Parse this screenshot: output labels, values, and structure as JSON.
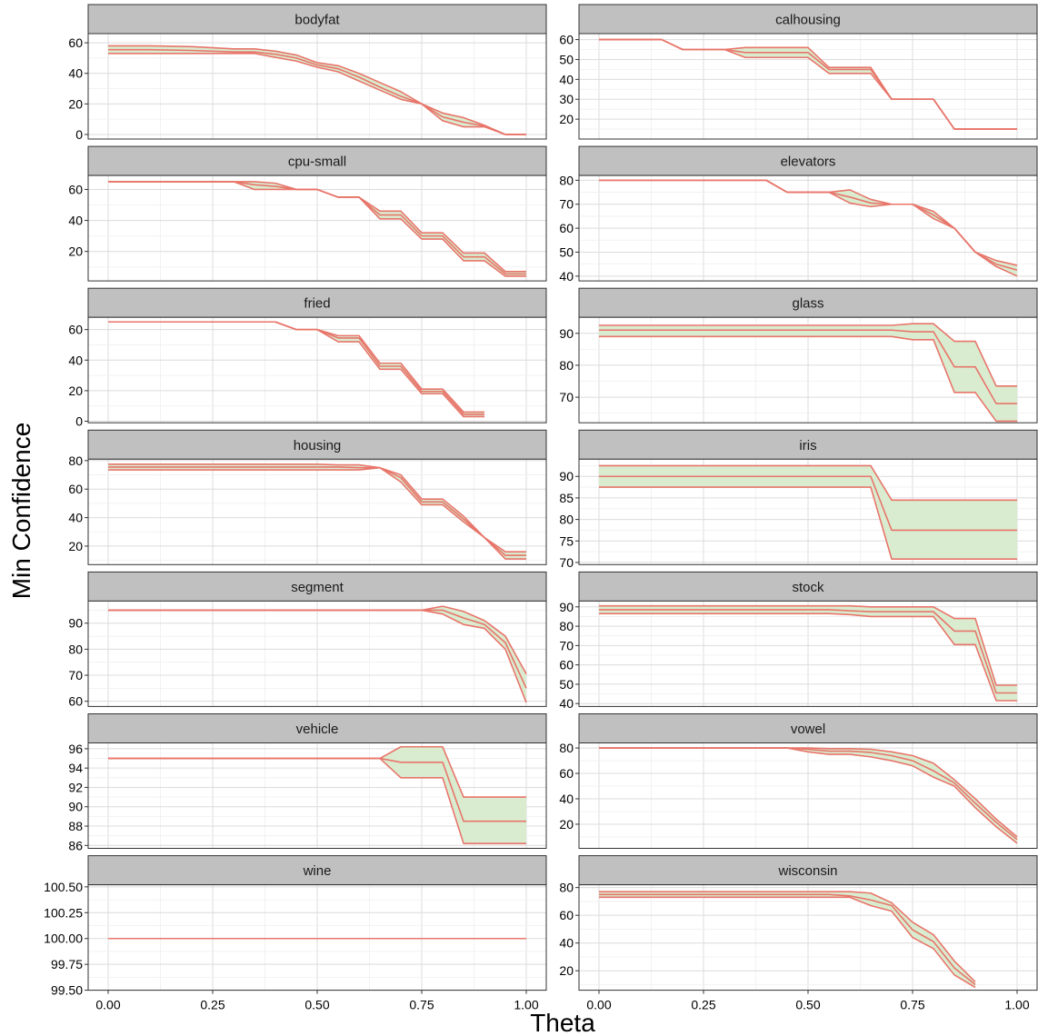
{
  "figure": {
    "xlabel": "Theta",
    "ylabel": "Min Confidence",
    "x_ticks": [
      "0.00",
      "0.25",
      "0.50",
      "0.75",
      "1.00"
    ]
  },
  "colors": {
    "line": "#e8756a",
    "band_fill": "#d9ecd0",
    "panel_border": "#333333",
    "strip_fill": "#c0c0c0",
    "grid_major": "#dcdcdc",
    "grid_minor": "#efefef"
  },
  "chart_data": [
    {
      "type": "line",
      "title": "bodyfat",
      "ylim": [
        -3,
        66
      ],
      "yticks": [
        0,
        20,
        40,
        60
      ],
      "x": [
        0,
        0.1,
        0.2,
        0.3,
        0.35,
        0.4,
        0.45,
        0.5,
        0.55,
        0.6,
        0.65,
        0.7,
        0.75,
        0.8,
        0.85,
        0.9,
        0.95,
        1.0
      ],
      "upper": [
        58,
        58,
        57.5,
        56,
        56,
        54.5,
        52,
        47,
        45,
        40,
        34,
        28,
        20,
        14,
        11,
        6,
        0,
        0
      ],
      "mid": [
        55.5,
        55.5,
        55,
        54,
        54,
        52.5,
        50,
        45.5,
        43,
        37.5,
        31,
        25,
        20,
        11.5,
        8,
        5.5,
        0,
        0
      ],
      "lower": [
        53,
        53,
        53,
        53,
        53,
        50.5,
        48,
        44,
        41,
        35,
        29,
        23,
        20,
        9,
        5,
        5,
        0,
        0
      ]
    },
    {
      "type": "line",
      "title": "calhousing",
      "ylim": [
        10,
        63
      ],
      "yticks": [
        20,
        30,
        40,
        50,
        60
      ],
      "x": [
        0,
        0.15,
        0.2,
        0.3,
        0.35,
        0.5,
        0.55,
        0.65,
        0.7,
        0.8,
        0.85,
        1.0
      ],
      "upper": [
        60,
        60,
        55,
        55,
        56,
        56,
        46,
        46,
        30,
        30,
        15,
        15
      ],
      "mid": [
        60,
        60,
        55,
        55,
        53.5,
        53.5,
        45,
        45,
        30,
        30,
        15,
        15
      ],
      "lower": [
        60,
        60,
        55,
        55,
        51,
        51,
        43,
        43,
        30,
        30,
        15,
        15
      ]
    },
    {
      "type": "line",
      "title": "cpu-small",
      "ylim": [
        1,
        69
      ],
      "yticks": [
        20,
        40,
        60
      ],
      "x": [
        0,
        0.3,
        0.35,
        0.4,
        0.45,
        0.5,
        0.55,
        0.6,
        0.65,
        0.7,
        0.75,
        0.8,
        0.85,
        0.9,
        0.95,
        1.0
      ],
      "upper": [
        65,
        65,
        65,
        64,
        60,
        60,
        55,
        55,
        46,
        46,
        32,
        32,
        19,
        19,
        7,
        7
      ],
      "mid": [
        65,
        65,
        63,
        62,
        60,
        60,
        55,
        55,
        43.5,
        43.5,
        30,
        30,
        16.5,
        16.5,
        5.5,
        5.5
      ],
      "lower": [
        65,
        65,
        60,
        60,
        60,
        60,
        55,
        55,
        41,
        41,
        28,
        28,
        14,
        14,
        4,
        4
      ]
    },
    {
      "type": "line",
      "title": "elevators",
      "ylim": [
        38,
        82
      ],
      "yticks": [
        40,
        50,
        60,
        70,
        80
      ],
      "x": [
        0,
        0.4,
        0.45,
        0.5,
        0.55,
        0.6,
        0.65,
        0.7,
        0.75,
        0.8,
        0.85,
        0.9,
        0.95,
        1.0
      ],
      "upper": [
        80,
        80,
        75,
        75,
        75,
        76,
        72,
        70,
        70,
        67,
        60,
        50,
        46.5,
        44.5
      ],
      "mid": [
        80,
        80,
        75,
        75,
        75,
        73,
        70.5,
        70,
        70,
        65.5,
        60,
        50,
        45,
        42.5
      ],
      "lower": [
        80,
        80,
        75,
        75,
        75,
        70.5,
        69,
        70,
        70,
        64,
        60,
        50,
        44,
        40
      ]
    },
    {
      "type": "line",
      "title": "fried",
      "ylim": [
        -1,
        68
      ],
      "yticks": [
        0,
        20,
        40,
        60
      ],
      "x": [
        0,
        0.4,
        0.45,
        0.5,
        0.55,
        0.6,
        0.65,
        0.7,
        0.75,
        0.8,
        0.85,
        0.9
      ],
      "upper": [
        65,
        65,
        60,
        60,
        56,
        56,
        38,
        38,
        21,
        21,
        6,
        6
      ],
      "mid": [
        65,
        65,
        60,
        60,
        54.5,
        54.5,
        36,
        36,
        19.5,
        19.5,
        4.5,
        4.5
      ],
      "lower": [
        65,
        65,
        60,
        60,
        52,
        52,
        34,
        34,
        18,
        18,
        3,
        3
      ]
    },
    {
      "type": "line",
      "title": "glass",
      "ylim": [
        62,
        95
      ],
      "yticks": [
        70,
        80,
        90
      ],
      "x": [
        0,
        0.65,
        0.7,
        0.75,
        0.8,
        0.85,
        0.9,
        0.95,
        1.0
      ],
      "upper": [
        92.5,
        92.5,
        92.5,
        93,
        93,
        87.5,
        87.5,
        73.5,
        73.5
      ],
      "mid": [
        91,
        91,
        91,
        90.5,
        90.5,
        79.5,
        79.5,
        68,
        68
      ],
      "lower": [
        89,
        89,
        89,
        88,
        88,
        71.5,
        71.5,
        62.5,
        62.5
      ]
    },
    {
      "type": "line",
      "title": "housing",
      "ylim": [
        7,
        81
      ],
      "yticks": [
        20,
        40,
        60,
        80
      ],
      "x": [
        0,
        0.5,
        0.55,
        0.6,
        0.65,
        0.7,
        0.75,
        0.8,
        0.85,
        0.9,
        0.95,
        1.0
      ],
      "upper": [
        77.5,
        77.5,
        77,
        77,
        75,
        70,
        53,
        53,
        41,
        26,
        16,
        16
      ],
      "mid": [
        75.5,
        75.5,
        75.5,
        75,
        75,
        68,
        51,
        51,
        39,
        26,
        13.5,
        13.5
      ],
      "lower": [
        73.5,
        73.5,
        73.5,
        73.5,
        75,
        65,
        49,
        49,
        37,
        26,
        11,
        11
      ]
    },
    {
      "type": "line",
      "title": "iris",
      "ylim": [
        69.5,
        94
      ],
      "yticks": [
        70,
        75,
        80,
        85,
        90
      ],
      "x": [
        0,
        0.65,
        0.7,
        1.0
      ],
      "upper": [
        92.5,
        92.5,
        84.5,
        84.5
      ],
      "mid": [
        90,
        90,
        77.5,
        77.5
      ],
      "lower": [
        87.5,
        87.5,
        70.8,
        70.8
      ]
    },
    {
      "type": "line",
      "title": "segment",
      "ylim": [
        58,
        98.5
      ],
      "yticks": [
        60,
        70,
        80,
        90
      ],
      "x": [
        0,
        0.75,
        0.8,
        0.85,
        0.9,
        0.95,
        1.0
      ],
      "upper": [
        95,
        95,
        96.5,
        94.5,
        91,
        85,
        70.5
      ],
      "mid": [
        95,
        95,
        95,
        92,
        89.5,
        82.5,
        65
      ],
      "lower": [
        95,
        95,
        93.5,
        89.5,
        88,
        80,
        59.5
      ]
    },
    {
      "type": "line",
      "title": "stock",
      "ylim": [
        38.5,
        93
      ],
      "yticks": [
        40,
        50,
        60,
        70,
        80,
        90
      ],
      "x": [
        0,
        0.55,
        0.6,
        0.65,
        0.7,
        0.75,
        0.8,
        0.85,
        0.9,
        0.95,
        1.0
      ],
      "upper": [
        90.5,
        90.5,
        90.5,
        90,
        90,
        90,
        90,
        84,
        84,
        49.5,
        49.5
      ],
      "mid": [
        88.5,
        88.5,
        88,
        87.5,
        87.5,
        87.5,
        87.5,
        77.5,
        77.5,
        45.5,
        45.5
      ],
      "lower": [
        86.5,
        86.5,
        86,
        85,
        85,
        85,
        85,
        70.5,
        70.5,
        41.5,
        41.5
      ]
    },
    {
      "type": "line",
      "title": "vehicle",
      "ylim": [
        85.7,
        96.6
      ],
      "yticks": [
        86,
        88,
        90,
        92,
        94,
        96
      ],
      "x": [
        0,
        0.65,
        0.7,
        0.8,
        0.85,
        1.0
      ],
      "upper": [
        95,
        95,
        96.2,
        96.2,
        91,
        91
      ],
      "mid": [
        95,
        95,
        94.6,
        94.6,
        88.5,
        88.5
      ],
      "lower": [
        95,
        95,
        93,
        93,
        86.2,
        86.2
      ]
    },
    {
      "type": "line",
      "title": "vowel",
      "ylim": [
        1,
        84
      ],
      "yticks": [
        20,
        40,
        60,
        80
      ],
      "x": [
        0,
        0.45,
        0.5,
        0.55,
        0.6,
        0.65,
        0.7,
        0.75,
        0.8,
        0.85,
        0.9,
        0.95,
        1.0
      ],
      "upper": [
        80,
        80,
        80,
        79.5,
        79.5,
        79,
        77,
        74,
        68,
        55,
        40,
        24,
        10
      ],
      "mid": [
        80,
        80,
        79,
        77.5,
        77.5,
        76.5,
        74,
        70,
        62,
        52.5,
        36.5,
        21.5,
        8
      ],
      "lower": [
        80,
        80,
        77,
        75,
        75,
        73,
        70,
        66,
        57,
        50,
        33,
        18,
        5
      ]
    },
    {
      "type": "line",
      "title": "wine",
      "ylim": [
        99.5,
        100.52
      ],
      "yticks": [
        99.5,
        99.75,
        100.0,
        100.25,
        100.5
      ],
      "ytick_labels": [
        "99.50",
        "99.75",
        "100.00",
        "100.25",
        "100.50"
      ],
      "x": [
        0,
        1.0
      ],
      "upper": [
        100,
        100
      ],
      "mid": [
        100,
        100
      ],
      "lower": [
        100,
        100
      ]
    },
    {
      "type": "line",
      "title": "wisconsin",
      "ylim": [
        6,
        82
      ],
      "yticks": [
        20,
        40,
        60,
        80
      ],
      "x": [
        0,
        0.55,
        0.6,
        0.65,
        0.7,
        0.75,
        0.8,
        0.85,
        0.9
      ],
      "upper": [
        77,
        77,
        77,
        76,
        69,
        55,
        46,
        27,
        12
      ],
      "mid": [
        75,
        75,
        74,
        71,
        67,
        49.5,
        41,
        22,
        10
      ],
      "lower": [
        73,
        73,
        73,
        67,
        63,
        44,
        36,
        17,
        8
      ]
    }
  ]
}
